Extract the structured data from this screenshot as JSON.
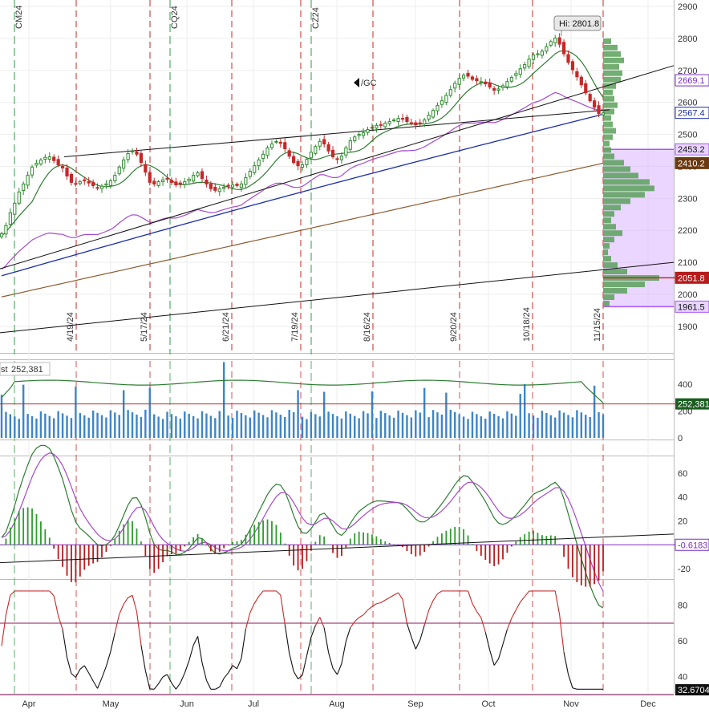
{
  "colors": {
    "up_candle": "#2e8b2e",
    "down_candle": "#c62828",
    "ma_green": "#2e7d32",
    "ma_purple": "#a64ac9",
    "ma_blue": "#1a2ea8",
    "ma_brown": "#8b5a2b",
    "trendline": "#111111",
    "event_red": "#c62828",
    "event_green": "#2e9d4a",
    "volume_bar": "#3d85c6",
    "volume_profile": "#5aa05a",
    "value_area": "#d8b4fe",
    "macd_hist_up": "#2e9d2e",
    "macd_hist_down": "#b71c1c",
    "rsi_line": "#111111",
    "rsi_over": "#c62828",
    "level_line": "#8b1a5a"
  },
  "chart_data": [
    {
      "type": "candlestick",
      "panel": "price",
      "symbol_label": "/GC",
      "y_ticks": [
        "2900",
        "2800",
        "2700",
        "2600",
        "2500",
        "2400",
        "2300",
        "2200",
        "2100",
        "2000",
        "1900"
      ],
      "ylim": [
        1812,
        2905
      ],
      "x_months": [
        "Apr",
        "May",
        "Jun",
        "Jul",
        "Aug",
        "Sep",
        "Oct",
        "Nov",
        "Dec"
      ],
      "event_lines_red": [
        "4/19/24",
        "5/17/24",
        "6/21/24",
        "7/19/24",
        "8/16/24",
        "9/20/24",
        "10/18/24",
        "11/15/24"
      ],
      "event_lines_green": [
        "CM24",
        "CQ24",
        "CZ24"
      ],
      "high_label": "Hi: 2801.8",
      "price_badges": [
        {
          "label": "2669.1",
          "value": 2669.1,
          "bg": "#ffffff",
          "fg": "#7b2cbf",
          "border": "#7b2cbf"
        },
        {
          "label": "2567.4",
          "value": 2567.4,
          "bg": "#ffffff",
          "fg": "#1a2ea8",
          "border": "#1a2ea8"
        },
        {
          "label": "2453.2",
          "value": 2453.2,
          "bg": "#e9d5ff",
          "fg": "#111111",
          "border": "#a855f7"
        },
        {
          "label": "2410.2",
          "value": 2410.2,
          "bg": "#6b3a12",
          "fg": "#ffffff",
          "border": "#6b3a12"
        },
        {
          "label": "2051.8",
          "value": 2051.8,
          "bg": "#b71c1c",
          "fg": "#ffffff",
          "border": "#b71c1c"
        },
        {
          "label": "1961.5",
          "value": 1961.5,
          "bg": "#e9d5ff",
          "fg": "#111111",
          "border": "#a855f7"
        }
      ],
      "close_series": [
        2190,
        2215,
        2255,
        2285,
        2320,
        2345,
        2372,
        2398,
        2410,
        2420,
        2428,
        2430,
        2418,
        2405,
        2395,
        2370,
        2350,
        2345,
        2352,
        2355,
        2348,
        2340,
        2332,
        2338,
        2345,
        2355,
        2372,
        2398,
        2420,
        2440,
        2448,
        2438,
        2412,
        2382,
        2350,
        2345,
        2352,
        2358,
        2360,
        2350,
        2342,
        2346,
        2352,
        2360,
        2372,
        2380,
        2362,
        2345,
        2330,
        2325,
        2330,
        2335,
        2338,
        2342,
        2340,
        2345,
        2365,
        2385,
        2402,
        2420,
        2438,
        2458,
        2470,
        2478,
        2472,
        2455,
        2432,
        2412,
        2402,
        2405,
        2422,
        2444,
        2462,
        2478,
        2470,
        2448,
        2430,
        2422,
        2432,
        2458,
        2480,
        2492,
        2500,
        2505,
        2515,
        2522,
        2528,
        2530,
        2535,
        2540,
        2545,
        2550,
        2548,
        2540,
        2535,
        2530,
        2535,
        2545,
        2560,
        2575,
        2590,
        2605,
        2622,
        2640,
        2660,
        2675,
        2685,
        2682,
        2672,
        2668,
        2665,
        2658,
        2648,
        2638,
        2642,
        2652,
        2665,
        2678,
        2690,
        2705,
        2718,
        2735,
        2748,
        2752,
        2760,
        2774,
        2790,
        2801,
        2782,
        2752,
        2725,
        2702,
        2680,
        2655,
        2630,
        2605,
        2585,
        2565,
        2567
      ]
    },
    {
      "type": "bar",
      "panel": "volume",
      "label": "st",
      "value_label": "252,381",
      "y_ticks": [
        "400",
        "200",
        "0"
      ],
      "ylim": [
        0,
        500
      ],
      "avg_value": 252381
    },
    {
      "type": "line",
      "panel": "macd",
      "y_ticks": [
        "60",
        "40",
        "20",
        "-20"
      ],
      "ylim": [
        -26,
        72
      ],
      "value_label": "-0.6183"
    },
    {
      "type": "line",
      "panel": "rsi",
      "y_ticks": [
        "80",
        "60",
        "40"
      ],
      "ylim": [
        30,
        92
      ],
      "overbought": 70,
      "oversold": 30,
      "value_label": "32.6704"
    }
  ]
}
